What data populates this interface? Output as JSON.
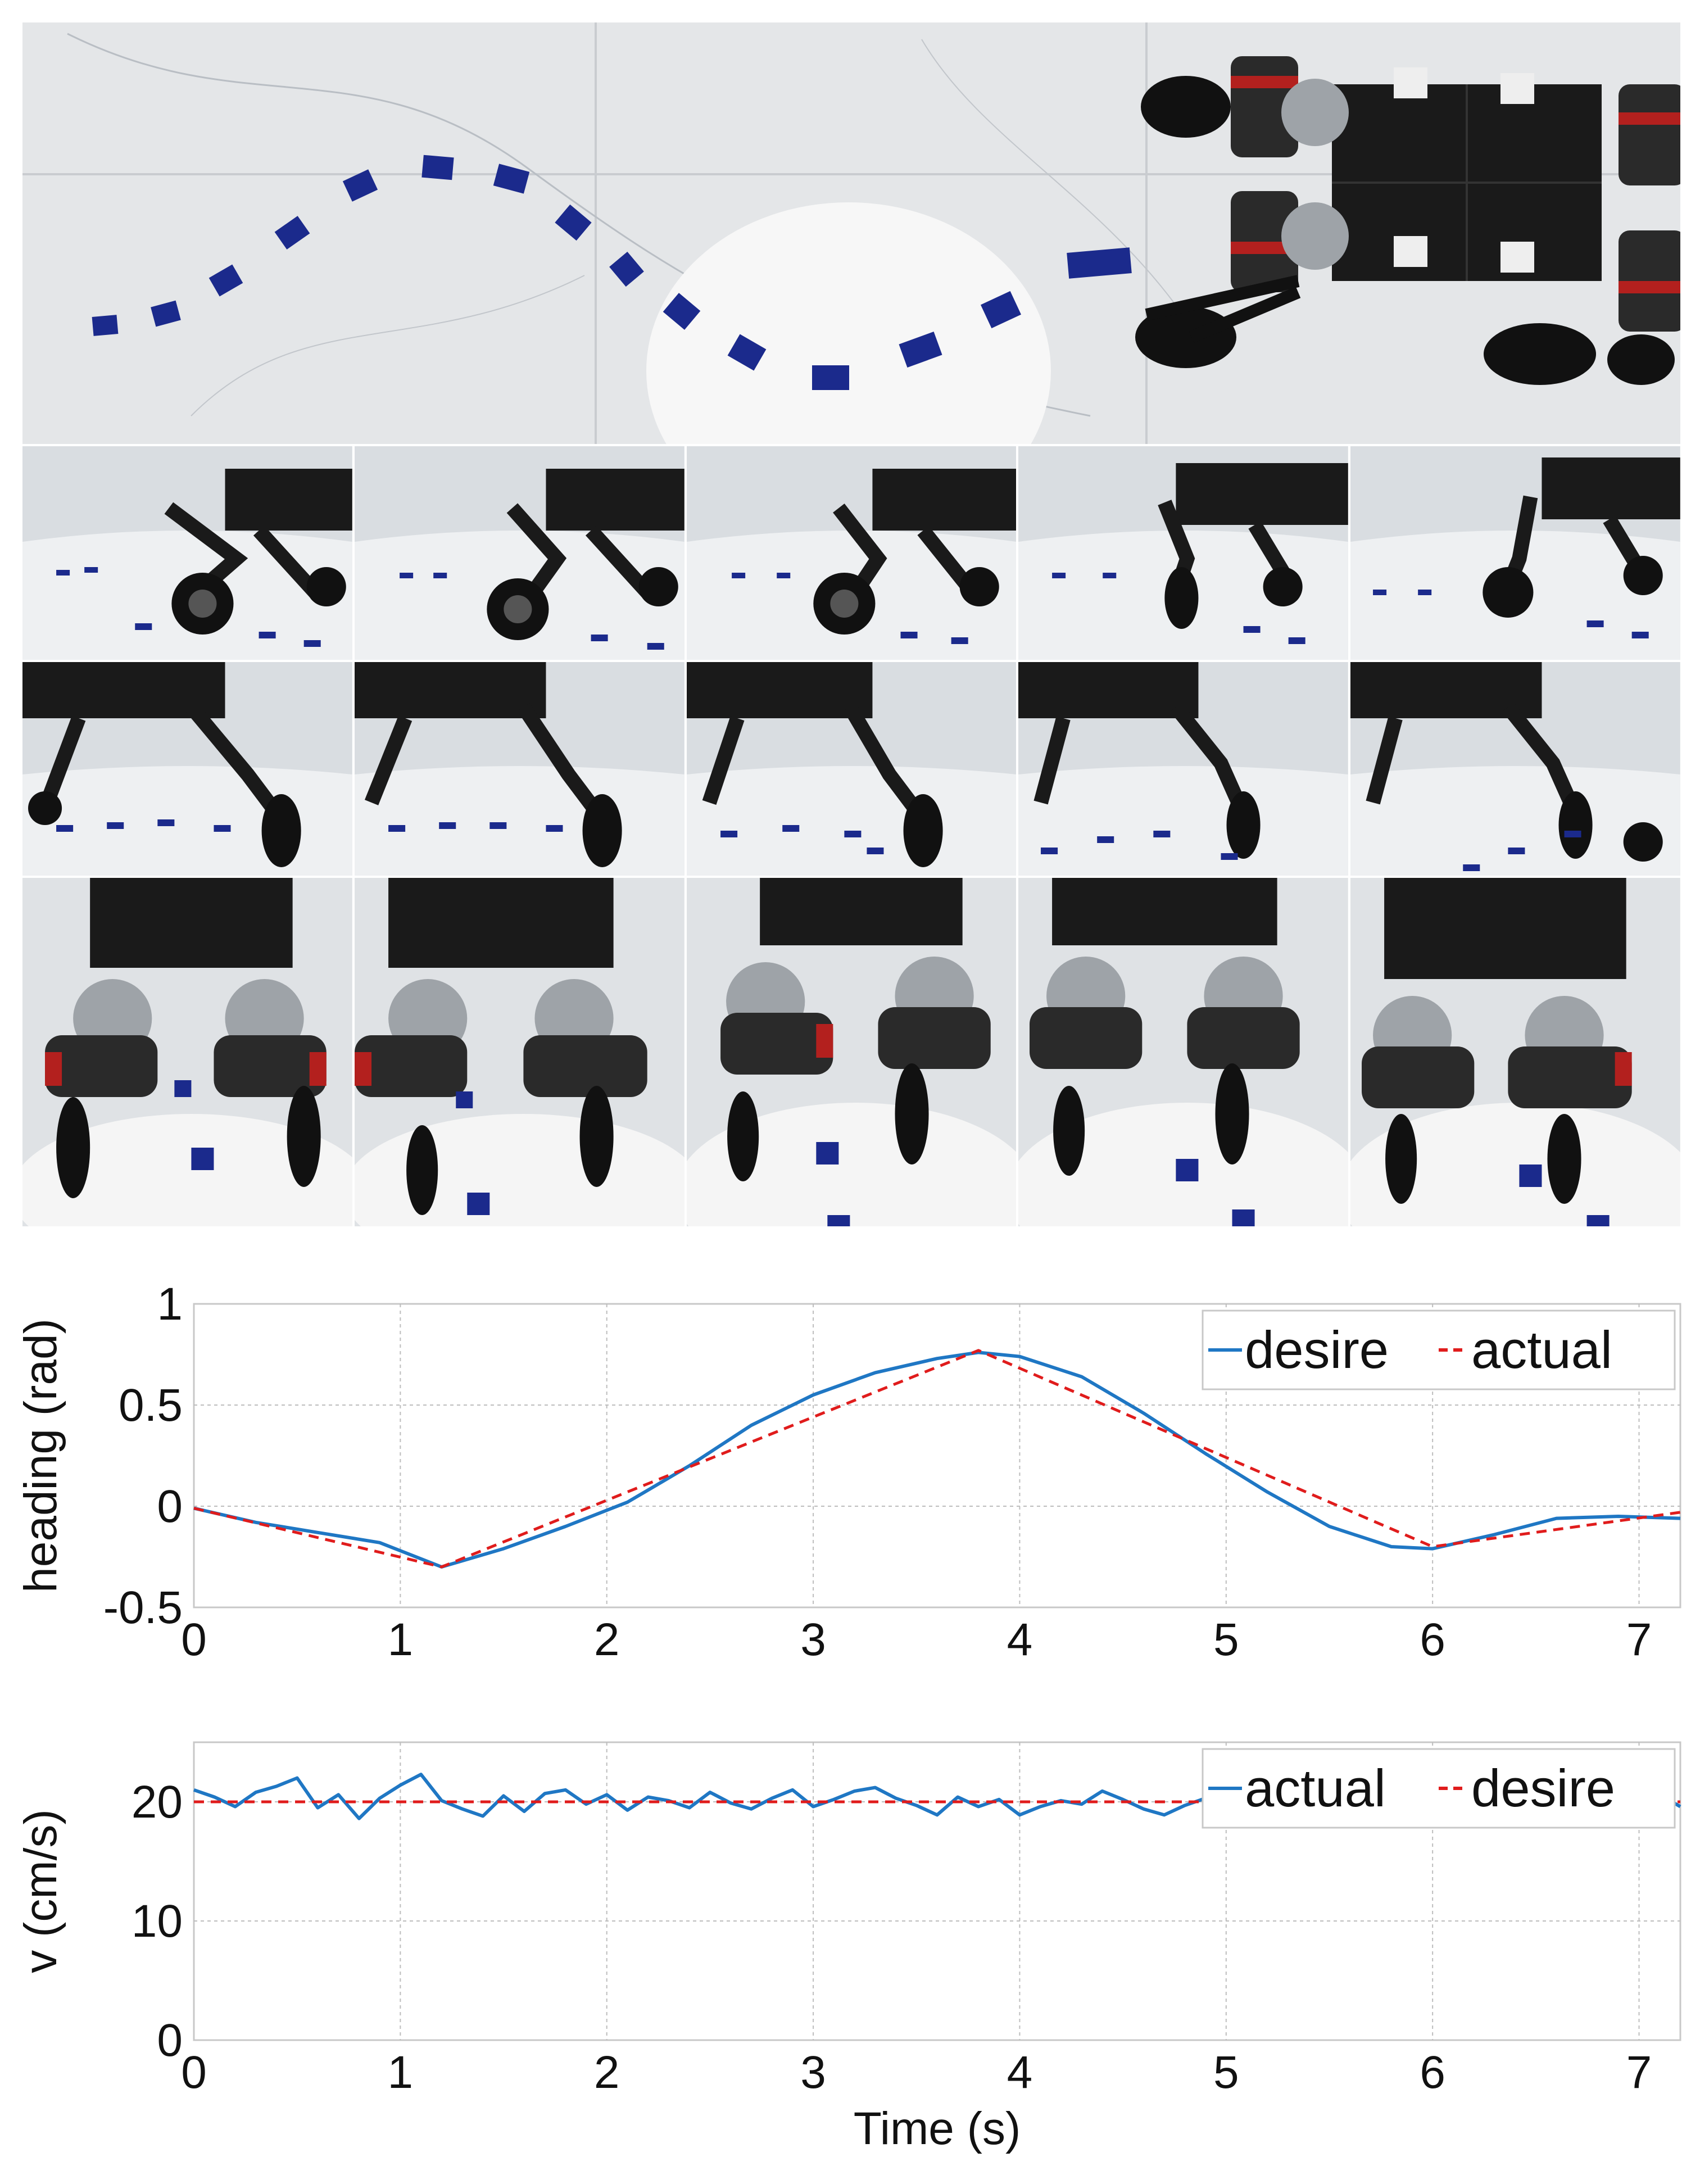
{
  "colors": {
    "blue_series": "#1f77c4",
    "red_series": "#e01c1c",
    "floor": "#e4e6e8",
    "tape": "#1b2a8c",
    "robot": "#1a1a1a",
    "wheel_red": "#b3201e"
  },
  "photos": {
    "overview": "robot-following-curved-tape-path-photo",
    "sequence_rows": 3,
    "sequence_cols": 5
  },
  "chart_data": [
    {
      "type": "line",
      "ylabel": "heading (rad)",
      "xlabel": "",
      "xlim": [
        0,
        7.2
      ],
      "ylim": [
        -0.5,
        1
      ],
      "xticks": [
        "0",
        "1",
        "2",
        "3",
        "4",
        "5",
        "6",
        "7"
      ],
      "yticks": [
        "-0.5",
        "0",
        "0.5",
        "1"
      ],
      "grid": true,
      "legend_placement": "top-right",
      "series": [
        {
          "name": "desire",
          "style": "solid",
          "color": "#1f77c4",
          "x": [
            0,
            0.3,
            0.6,
            0.9,
            1.2,
            1.5,
            1.8,
            2.1,
            2.4,
            2.7,
            3.0,
            3.3,
            3.6,
            3.8,
            4.0,
            4.3,
            4.6,
            4.9,
            5.2,
            5.5,
            5.8,
            6.0,
            6.3,
            6.6,
            6.9,
            7.2
          ],
          "y": [
            -0.01,
            -0.08,
            -0.13,
            -0.18,
            -0.3,
            -0.21,
            -0.1,
            0.02,
            0.2,
            0.4,
            0.55,
            0.66,
            0.73,
            0.76,
            0.74,
            0.64,
            0.46,
            0.26,
            0.07,
            -0.1,
            -0.2,
            -0.21,
            -0.14,
            -0.06,
            -0.05,
            -0.06
          ]
        },
        {
          "name": "actual",
          "style": "dashed",
          "color": "#e01c1c",
          "x": [
            0,
            1.2,
            3.8,
            6.0,
            7.2
          ],
          "y": [
            -0.01,
            -0.3,
            0.77,
            -0.2,
            -0.03
          ]
        }
      ]
    },
    {
      "type": "line",
      "ylabel": "v (cm/s)",
      "xlabel": "Time (s)",
      "xlim": [
        0,
        7.2
      ],
      "ylim": [
        0,
        25
      ],
      "xticks": [
        "0",
        "1",
        "2",
        "3",
        "4",
        "5",
        "6",
        "7"
      ],
      "yticks": [
        "0",
        "10",
        "20"
      ],
      "grid": true,
      "legend_placement": "top-right",
      "series": [
        {
          "name": "actual",
          "style": "solid",
          "color": "#1f77c4",
          "x": [
            0,
            0.1,
            0.2,
            0.3,
            0.4,
            0.5,
            0.6,
            0.7,
            0.8,
            0.9,
            1.0,
            1.1,
            1.2,
            1.3,
            1.4,
            1.5,
            1.6,
            1.7,
            1.8,
            1.9,
            2.0,
            2.1,
            2.2,
            2.3,
            2.4,
            2.5,
            2.6,
            2.7,
            2.8,
            2.9,
            3.0,
            3.1,
            3.2,
            3.3,
            3.4,
            3.5,
            3.6,
            3.7,
            3.8,
            3.9,
            4.0,
            4.1,
            4.2,
            4.3,
            4.4,
            4.5,
            4.6,
            4.7,
            4.8,
            4.9,
            5.0,
            5.1,
            5.2,
            5.3,
            5.4,
            5.5,
            5.6,
            5.7,
            5.8,
            5.9,
            6.0,
            6.1,
            6.2,
            6.3,
            6.4,
            6.5,
            6.6,
            6.7,
            6.8,
            6.9,
            7.0,
            7.1,
            7.2
          ],
          "y": [
            21.0,
            20.4,
            19.6,
            20.8,
            21.3,
            22.0,
            19.5,
            20.6,
            18.6,
            20.3,
            21.4,
            22.3,
            20.1,
            19.4,
            18.8,
            20.5,
            19.2,
            20.7,
            21.0,
            19.8,
            20.6,
            19.3,
            20.4,
            20.1,
            19.5,
            20.8,
            19.9,
            19.4,
            20.3,
            21.0,
            19.6,
            20.2,
            20.9,
            21.2,
            20.3,
            19.7,
            18.9,
            20.4,
            19.6,
            20.2,
            18.9,
            19.6,
            20.1,
            19.8,
            20.9,
            20.2,
            19.4,
            18.9,
            19.7,
            20.3,
            20.1,
            20.4,
            19.8,
            20.7,
            20.2,
            19.5,
            20.6,
            20.0,
            19.6,
            20.5,
            19.8,
            20.3,
            20.1,
            19.7,
            20.4,
            20.2,
            19.9,
            20.5,
            20.1,
            19.6,
            20.2,
            20.6,
            19.6
          ]
        },
        {
          "name": "desire",
          "style": "dashed",
          "color": "#e01c1c",
          "x": [
            0,
            7.2
          ],
          "y": [
            20,
            20
          ]
        }
      ]
    }
  ]
}
